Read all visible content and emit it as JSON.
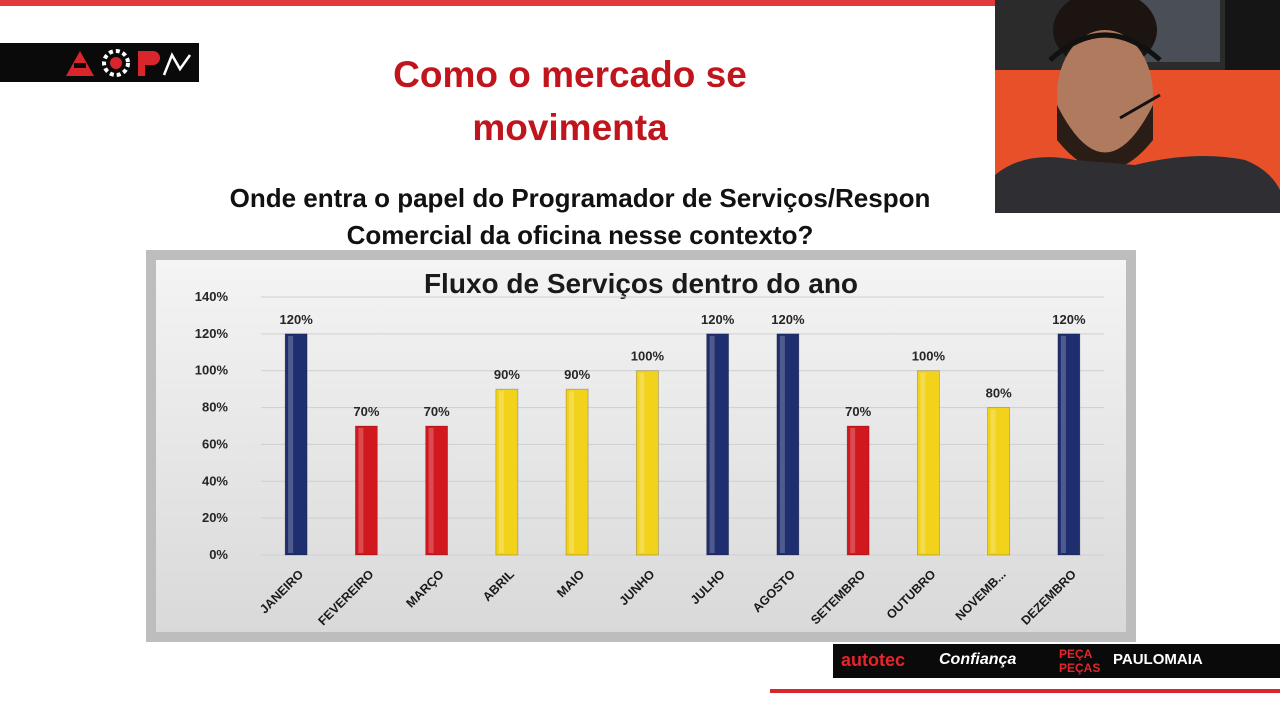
{
  "slide": {
    "title_line1": "Como o mercado se",
    "title_line2": "movimenta",
    "subtitle_line1": "Onde entra o papel do Programador de Serviços/Respon",
    "subtitle_line2": "Comercial da oficina nesse contexto?"
  },
  "sponsors": {
    "autotec": "autotec",
    "auto_confianca": "Confiança",
    "peca_pecas": "PEÇA PEÇAS",
    "paulo_maia": "PAULOMAIA"
  },
  "colors": {
    "accent_red": "#c0151c",
    "bar_blue": "#1f2e6e",
    "bar_red": "#d0181e",
    "bar_yellow": "#f2d21a"
  },
  "chart_data": {
    "type": "bar",
    "title": "Fluxo de Serviços dentro do ano",
    "xlabel": "",
    "ylabel": "",
    "ylim": [
      0,
      140
    ],
    "yticks": [
      0,
      20,
      40,
      60,
      80,
      100,
      120,
      140
    ],
    "ytick_labels": [
      "0%",
      "20%",
      "40%",
      "60%",
      "80%",
      "100%",
      "120%",
      "140%"
    ],
    "categories": [
      "JANEIRO",
      "FEVEREIRO",
      "MARÇO",
      "ABRIL",
      "MAIO",
      "JUNHO",
      "JULHO",
      "AGOSTO",
      "SETEMBRO",
      "OUTUBRO",
      "NOVEMB...",
      "DEZEMBRO"
    ],
    "values": [
      120,
      70,
      70,
      90,
      90,
      100,
      120,
      120,
      70,
      100,
      80,
      120
    ],
    "value_labels": [
      "120%",
      "70%",
      "70%",
      "90%",
      "90%",
      "100%",
      "120%",
      "120%",
      "70%",
      "100%",
      "80%",
      "120%"
    ],
    "bar_colors": [
      "#1f2e6e",
      "#d0181e",
      "#d0181e",
      "#f2d21a",
      "#f2d21a",
      "#f2d21a",
      "#1f2e6e",
      "#1f2e6e",
      "#d0181e",
      "#f2d21a",
      "#f2d21a",
      "#1f2e6e"
    ],
    "grid": true,
    "legend": "none"
  }
}
